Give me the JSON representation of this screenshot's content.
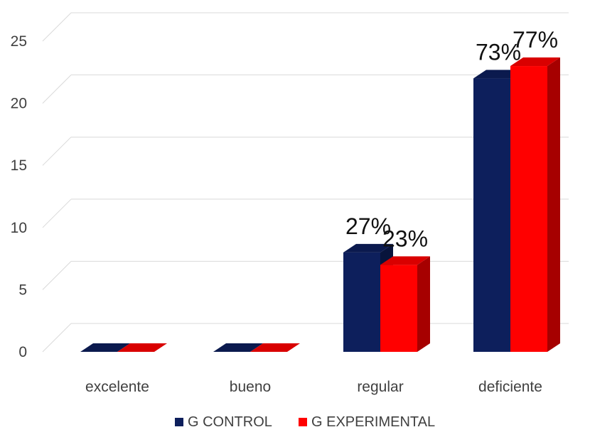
{
  "chart_data": {
    "type": "bar",
    "categories": [
      "excelente",
      "bueno",
      "regular",
      "deficiente"
    ],
    "series": [
      {
        "name": "G CONTROL",
        "values": [
          0,
          0,
          8,
          22
        ],
        "labels": [
          "",
          "",
          "27%",
          "73%"
        ],
        "color": "#0d1f5c"
      },
      {
        "name": "G EXPERIMENTAL",
        "values": [
          0,
          0,
          7,
          23
        ],
        "labels": [
          "",
          "",
          "23%",
          "77%"
        ],
        "color": "#ff0000"
      }
    ],
    "yticks": [
      "0",
      "5",
      "10",
      "15",
      "20",
      "25"
    ],
    "ylim": [
      0,
      25
    ],
    "grid": true,
    "legend_position": "bottom",
    "title": "",
    "xlabel": "",
    "ylabel": ""
  }
}
